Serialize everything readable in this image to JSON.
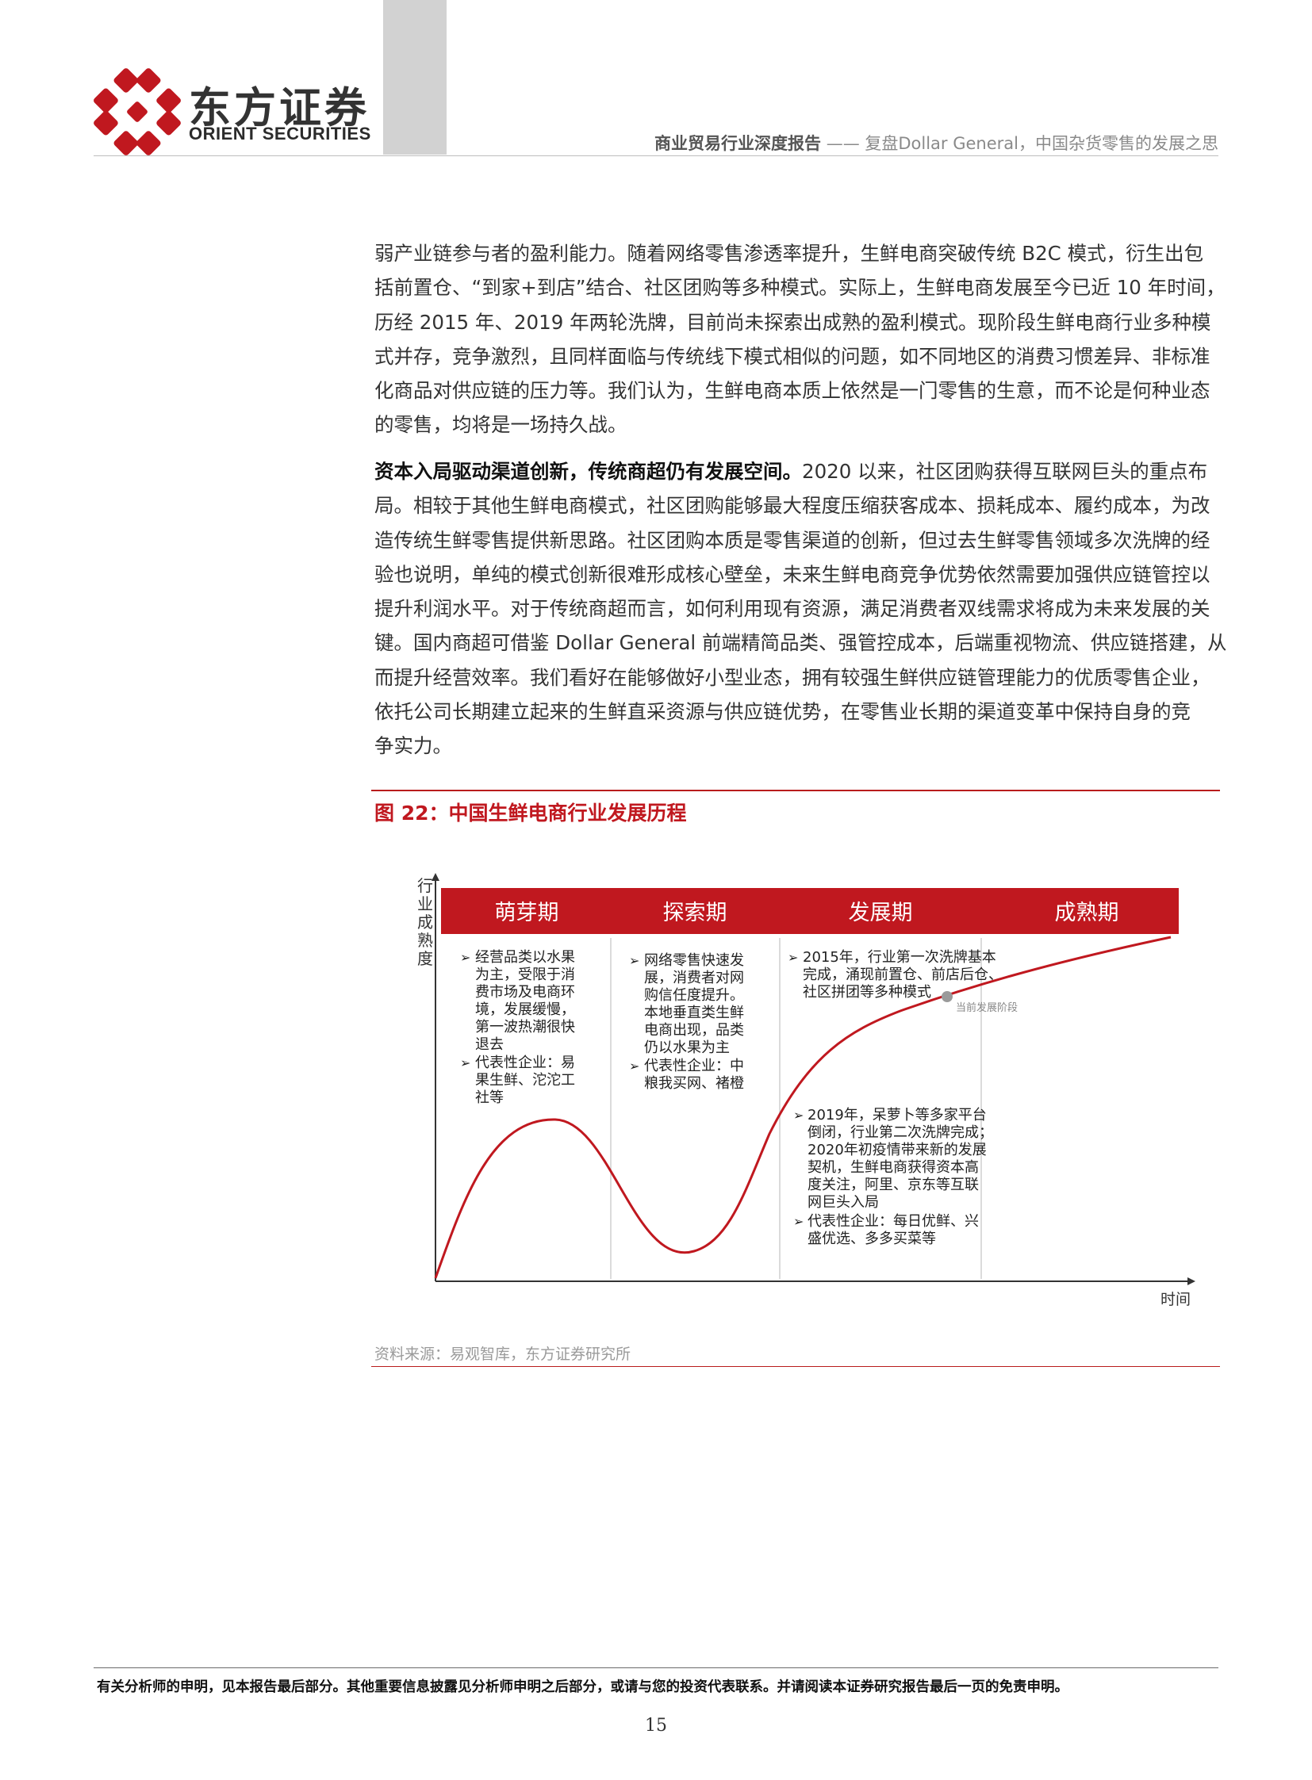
{
  "header": {
    "logo_cn": "东方证券",
    "logo_en": "ORIENT SECURITIES",
    "report_type": "商业贸易行业深度报告",
    "dash": "——",
    "report_subject": "复盘Dollar General，中国杂货零售的发展之思"
  },
  "paragraph1": [
    "弱产业链参与者的盈利能力。随着网络零售渗透率提升，生鲜电商突破传统 B2C 模式，衍生出包",
    "括前置仓、“到家+到店”结合、社区团购等多种模式。实际上，生鲜电商发展至今已近 10 年时间，",
    "历经 2015 年、2019 年两轮洗牌，目前尚未探索出成熟的盈利模式。现阶段生鲜电商行业多种模",
    "式并存，竞争激烈，且同样面临与传统线下模式相似的问题，如不同地区的消费习惯差异、非标准",
    "化商品对供应链的压力等。我们认为，生鲜电商本质上依然是一门零售的生意，而不论是何种业态",
    "的零售，均将是一场持久战。"
  ],
  "paragraph2": {
    "lead": "资本入局驱动渠道创新，传统商超仍有发展空间。",
    "first_rest": "2020 以来，社区团购获得互联网巨头的重点布",
    "lines": [
      "局。相较于其他生鲜电商模式，社区团购能够最大程度压缩获客成本、损耗成本、履约成本，为改",
      "造传统生鲜零售提供新思路。社区团购本质是零售渠道的创新，但过去生鲜零售领域多次洗牌的经",
      "验也说明，单纯的模式创新很难形成核心壁垒，未来生鲜电商竞争优势依然需要加强供应链管控以",
      "提升利润水平。对于传统商超而言，如何利用现有资源，满足消费者双线需求将成为未来发展的关",
      "键。国内商超可借鉴 Dollar General 前端精简品类、强管控成本，后端重视物流、供应链搭建，从",
      "而提升经营效率。我们看好在能够做好小型业态，拥有较强生鲜供应链管理能力的优质零售企业，",
      "依托公司长期建立起来的生鲜直采资源与供应链优势，在零售业长期的渠道变革中保持自身的竞",
      "争实力。"
    ]
  },
  "figure": {
    "title": "图 22：中国生鲜电商行业发展历程",
    "y_axis_chars": [
      "行",
      "业",
      "成",
      "熟",
      "度"
    ],
    "x_axis_label": "时间",
    "stages": [
      "萌芽期",
      "探索期",
      "发展期",
      "成熟期"
    ],
    "notes_stage1": [
      "经营品类以水果",
      "为主，受限于消",
      "费市场及电商环",
      "境，发展缓慢，",
      "第一波热潮很快",
      "退去"
    ],
    "notes_stage1_rep": [
      "代表性企业：易",
      "果生鲜、沱沱工",
      "社等"
    ],
    "notes_stage2": [
      "网络零售快速发",
      "展，消费者对网",
      "购信任度提升。",
      "本地垂直类生鲜",
      "电商出现，品类",
      "仍以水果为主"
    ],
    "notes_stage2_rep": [
      "代表性企业：中",
      "粮我买网、褚橙"
    ],
    "notes_stage3_top": [
      "2015年，行业第一次洗牌基本",
      "完成，涌现前置仓、前店后仓、",
      "社区拼团等多种模式"
    ],
    "current_stage_label": "当前发展阶段",
    "notes_stage3_bottom": [
      "2019年，呆萝卜等多家平台",
      "倒闭，行业第二次洗牌完成；",
      "2020年初疫情带来新的发展",
      "契机，生鲜电商获得资本高",
      "度关注，阿里、京东等互联",
      "网巨头入局"
    ],
    "notes_stage3_rep": [
      "代表性企业：每日优鲜、兴",
      "盛优选、多多买菜等"
    ],
    "bullet": "➢",
    "colors": {
      "header_band": "#c0181f",
      "curve": "#c0181f",
      "marker": "#9a9a9a"
    }
  },
  "source": "资料来源：易观智库，东方证券研究所",
  "footer": {
    "disclaimer": "有关分析师的申明，见本报告最后部分。其他重要信息披露见分析师申明之后部分，或请与您的投资代表联系。并请阅读本证券研究报告最后一页的免责申明。",
    "page_number": "15"
  }
}
